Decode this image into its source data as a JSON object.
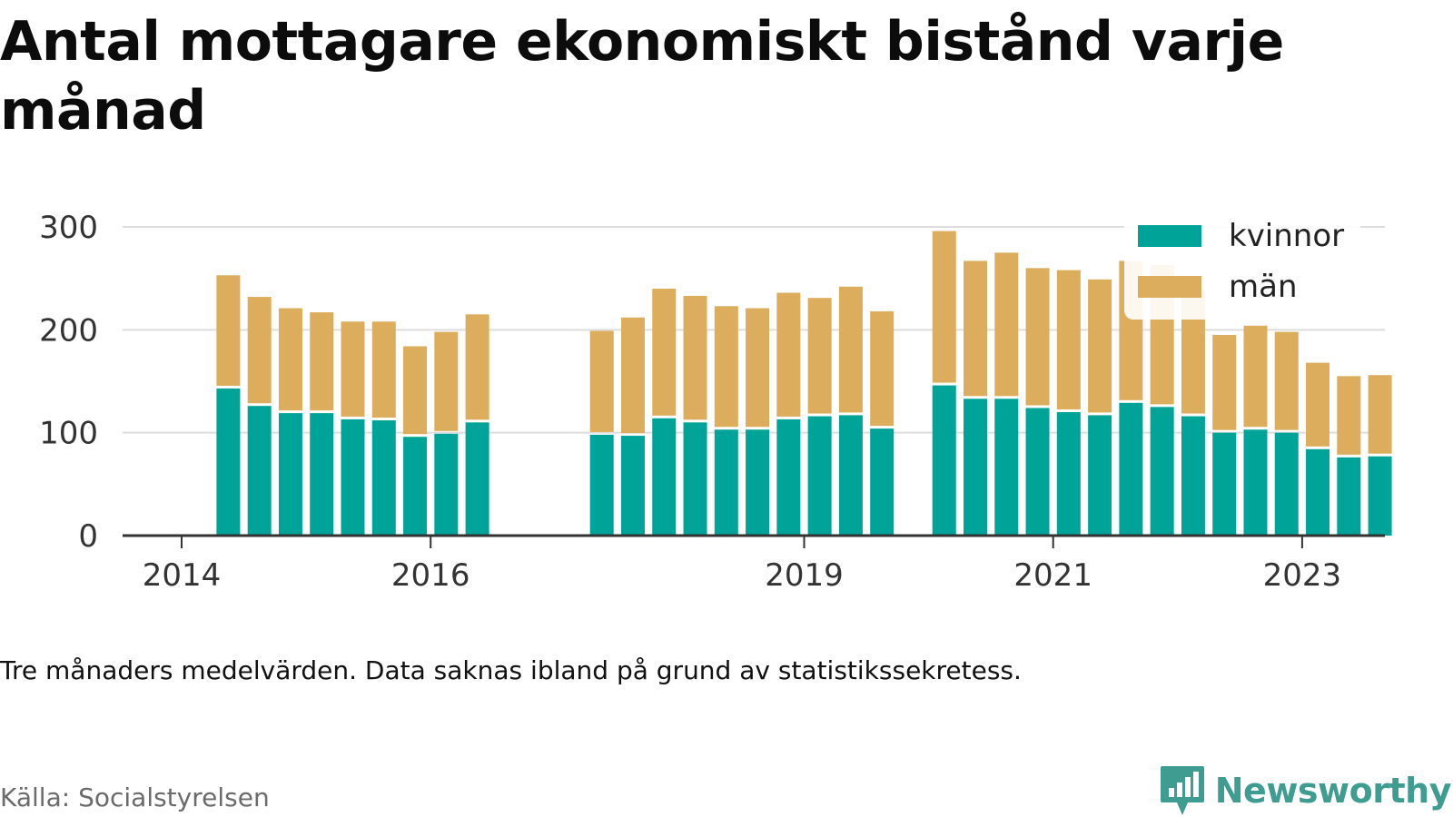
{
  "title": "Antal mottagare ekonomiskt bistånd varje månad",
  "note": "Tre månaders medelvärden. Data saknas ibland på grund av statistikssekretess.",
  "source": "Källa: Socialstyrelsen",
  "brand": "Newsworthy",
  "colors": {
    "kvinnor": "#00a398",
    "man": "#dcad5c",
    "grid": "#dddddd",
    "axis": "#333333",
    "brand": "#3e9c91"
  },
  "chart_data": {
    "type": "bar",
    "stacked": true,
    "x_ticks": [
      "2014",
      "2016",
      "2019",
      "2021",
      "2023"
    ],
    "y_ticks": [
      0,
      100,
      200,
      300
    ],
    "ylim": [
      0,
      300
    ],
    "grid": true,
    "legend_position": "top-right",
    "categories": [
      "2014-Q2",
      "2014-Q3",
      "2014-Q4",
      "2015-Q1",
      "2015-Q2",
      "2015-Q3",
      "2015-Q4",
      "2016-Q1",
      "2016-Q2",
      "2017-Q2",
      "2017-Q3",
      "2017-Q4",
      "2018-Q1",
      "2018-Q2",
      "2018-Q3",
      "2018-Q4",
      "2019-Q1",
      "2019-Q2",
      "2019-Q3",
      "2020-Q1",
      "2020-Q2",
      "2020-Q3",
      "2020-Q4",
      "2021-Q1",
      "2021-Q2",
      "2021-Q3",
      "2021-Q4",
      "2022-Q1",
      "2022-Q2",
      "2022-Q3",
      "2022-Q4",
      "2023-Q1",
      "2023-Q2",
      "2023-Q3"
    ],
    "series": [
      {
        "name": "kvinnor",
        "values": [
          143,
          126,
          119,
          119,
          113,
          112,
          96,
          99,
          110,
          98,
          97,
          114,
          110,
          103,
          103,
          113,
          116,
          117,
          104,
          146,
          133,
          133,
          124,
          120,
          117,
          129,
          125,
          116,
          100,
          103,
          100,
          84,
          76,
          77
        ]
      },
      {
        "name": "män",
        "values": [
          110,
          106,
          102,
          98,
          95,
          96,
          88,
          99,
          105,
          101,
          115,
          126,
          123,
          120,
          118,
          123,
          115,
          125,
          114,
          150,
          134,
          142,
          136,
          138,
          132,
          138,
          138,
          123,
          95,
          101,
          98,
          84,
          79,
          79
        ]
      }
    ]
  }
}
